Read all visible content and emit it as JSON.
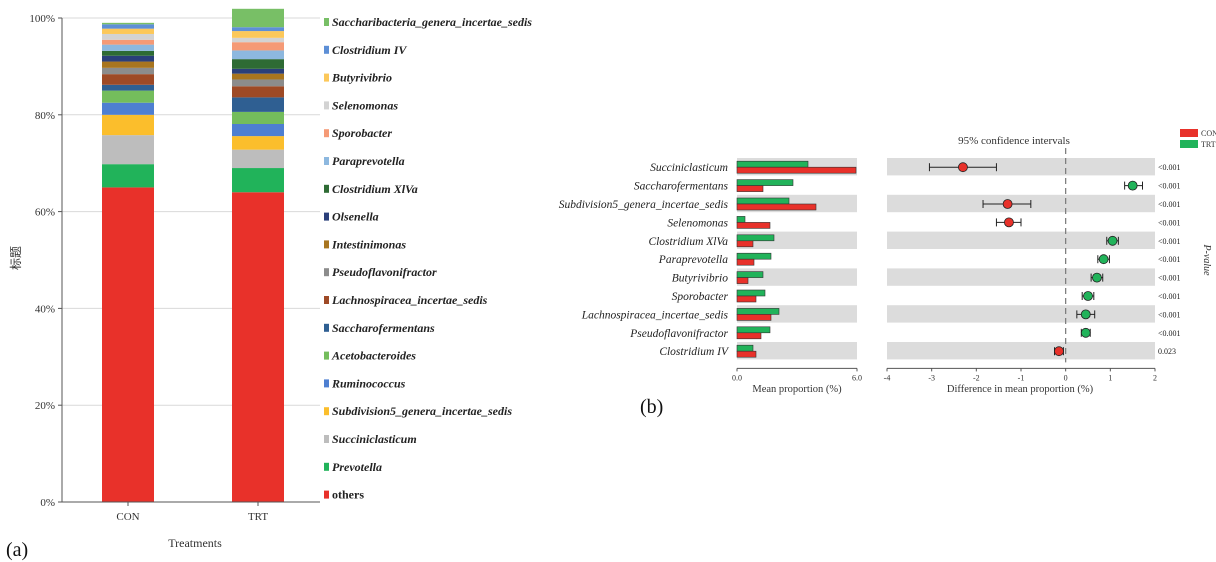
{
  "chart_data": [
    {
      "type": "bar",
      "subtype": "stacked-percent",
      "panel_label": "(a)",
      "xlabel": "Treatments",
      "ylabel": "标题",
      "ylim": [
        0,
        100
      ],
      "y_ticks": [
        "0%",
        "20%",
        "40%",
        "60%",
        "80%",
        "100%"
      ],
      "categories": [
        "CON",
        "TRT"
      ],
      "series": [
        {
          "name": "others",
          "color": "#e8312a",
          "values": [
            65.0,
            64.0
          ]
        },
        {
          "name": "Prevotella",
          "color": "#21b35a",
          "values": [
            4.8,
            5.0
          ]
        },
        {
          "name": "Succiniclasticum",
          "color": "#bdbdbd",
          "values": [
            6.0,
            3.8
          ]
        },
        {
          "name": "Subdivision5_genera_incertae_sedis",
          "color": "#fbbe2c",
          "values": [
            4.2,
            2.8
          ]
        },
        {
          "name": "Ruminococcus",
          "color": "#4e7fd1",
          "values": [
            2.5,
            2.5
          ]
        },
        {
          "name": "Acetobacteroides",
          "color": "#74bd5c",
          "values": [
            2.5,
            2.5
          ]
        },
        {
          "name": "Saccharofermentans",
          "color": "#2f5f92",
          "values": [
            1.2,
            3.0
          ]
        },
        {
          "name": "Lachnospiracea_incertae_sedis",
          "color": "#9e4a26",
          "values": [
            2.2,
            2.3
          ]
        },
        {
          "name": "Pseudoflavonifractor",
          "color": "#8c8c8c",
          "values": [
            1.3,
            1.4
          ]
        },
        {
          "name": "Intestinimonas",
          "color": "#a8751f",
          "values": [
            1.3,
            1.2
          ]
        },
        {
          "name": "Olsenella",
          "color": "#2a3f7a",
          "values": [
            1.2,
            1.0
          ]
        },
        {
          "name": "Clostridium XlVa",
          "color": "#2e6b34",
          "values": [
            1.0,
            2.0
          ]
        },
        {
          "name": "Paraprevotella",
          "color": "#8db8df",
          "values": [
            1.3,
            1.8
          ]
        },
        {
          "name": "Sporobacter",
          "color": "#f59a76",
          "values": [
            1.0,
            1.7
          ]
        },
        {
          "name": "Selenomonas",
          "color": "#d3d3d3",
          "values": [
            1.2,
            0.9
          ]
        },
        {
          "name": "Butyrivibrio",
          "color": "#fcc85a",
          "values": [
            1.1,
            1.4
          ]
        },
        {
          "name": "Clostridium IV",
          "color": "#5d8fd6",
          "values": [
            0.9,
            0.8
          ]
        },
        {
          "name": "Saccharibacteria_genera_incertae_sedis",
          "color": "#78bf66",
          "values": [
            0.3,
            3.8
          ]
        }
      ]
    },
    {
      "type": "bar",
      "subtype": "extended-error-bar",
      "panel_label": "(b)",
      "title": "95% confidence intervals",
      "legend": [
        {
          "name": "CON",
          "color": "#e8312a"
        },
        {
          "name": "TRT",
          "color": "#21b35a"
        }
      ],
      "left_xlabel": "Mean proportion (%)",
      "left_xlim": [
        0,
        6.0
      ],
      "left_ticks": [
        "0.0",
        "6.0"
      ],
      "right_xlabel": "Difference in mean proportion (%)",
      "right_xlim": [
        -4,
        2
      ],
      "right_ticks": [
        "-4",
        "-3",
        "-2",
        "-1",
        "0",
        "1",
        "2"
      ],
      "pvalue_label": "P-value",
      "rows": [
        {
          "taxon": "Succiniclasticum",
          "con": 5.95,
          "trt": 3.55,
          "diff": -2.3,
          "ci": [
            -3.05,
            -1.55
          ],
          "p": "<0.001"
        },
        {
          "taxon": "Saccharofermentans",
          "con": 1.3,
          "trt": 2.8,
          "diff": 1.5,
          "ci": [
            1.32,
            1.72
          ],
          "p": "<0.001"
        },
        {
          "taxon": "Subdivision5_genera_incertae_sedis",
          "con": 3.95,
          "trt": 2.6,
          "diff": -1.3,
          "ci": [
            -1.85,
            -0.78
          ],
          "p": "<0.001"
        },
        {
          "taxon": "Selenomonas",
          "con": 1.65,
          "trt": 0.4,
          "diff": -1.27,
          "ci": [
            -1.55,
            -1.0
          ],
          "p": "<0.001"
        },
        {
          "taxon": "Clostridium XlVa",
          "con": 0.8,
          "trt": 1.85,
          "diff": 1.05,
          "ci": [
            0.92,
            1.18
          ],
          "p": "<0.001"
        },
        {
          "taxon": "Paraprevotella",
          "con": 0.85,
          "trt": 1.7,
          "diff": 0.85,
          "ci": [
            0.72,
            0.98
          ],
          "p": "<0.001"
        },
        {
          "taxon": "Butyrivibrio",
          "con": 0.55,
          "trt": 1.3,
          "diff": 0.7,
          "ci": [
            0.57,
            0.83
          ],
          "p": "<0.001"
        },
        {
          "taxon": "Sporobacter",
          "con": 0.95,
          "trt": 1.4,
          "diff": 0.5,
          "ci": [
            0.37,
            0.63
          ],
          "p": "<0.001"
        },
        {
          "taxon": "Lachnospiracea_incertae_sedis",
          "con": 1.7,
          "trt": 2.1,
          "diff": 0.45,
          "ci": [
            0.25,
            0.65
          ],
          "p": "<0.001"
        },
        {
          "taxon": "Pseudoflavonifractor",
          "con": 1.2,
          "trt": 1.65,
          "diff": 0.45,
          "ci": [
            0.35,
            0.55
          ],
          "p": "<0.001"
        },
        {
          "taxon": "Clostridium IV",
          "con": 0.95,
          "trt": 0.8,
          "diff": -0.15,
          "ci": [
            -0.25,
            -0.05
          ],
          "p": "0.023"
        }
      ]
    }
  ]
}
